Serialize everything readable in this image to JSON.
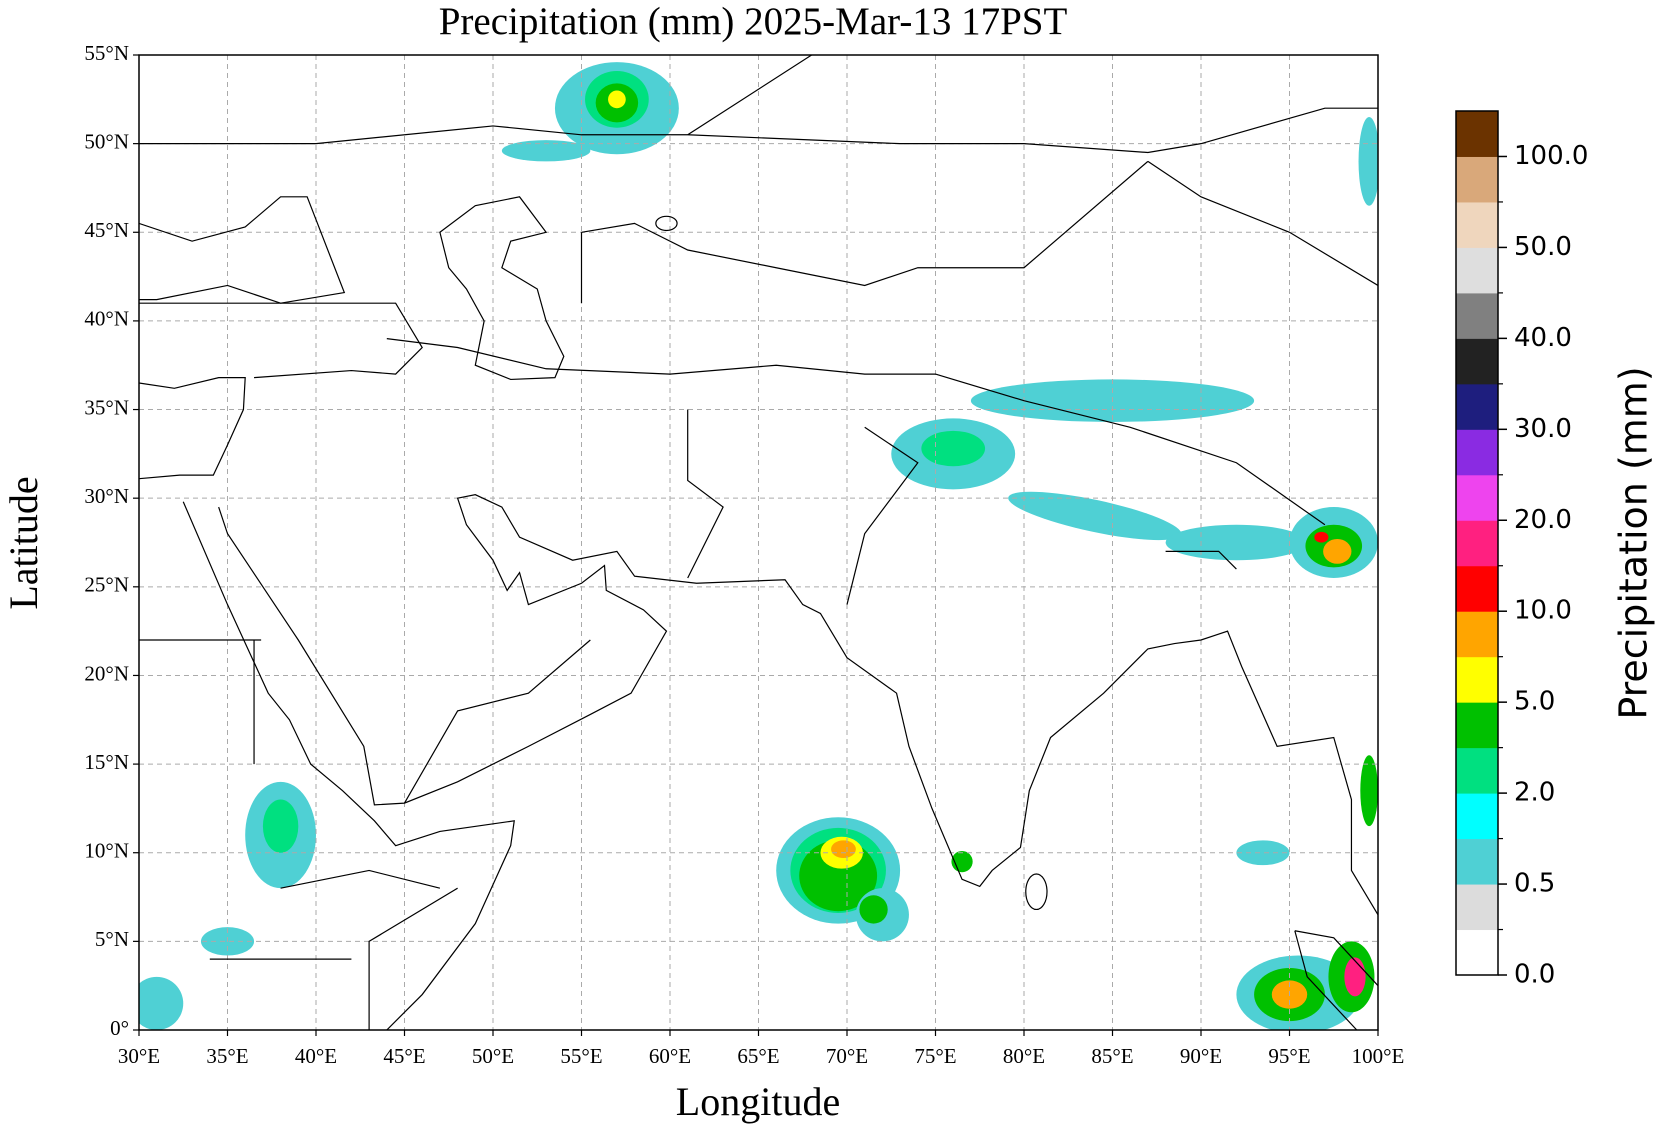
{
  "chart_data": {
    "type": "map",
    "title": "Precipitation (mm)  2025-Mar-13 17PST",
    "x_label": "Longitude",
    "y_label": "Latitude",
    "xlim": [
      30,
      100
    ],
    "ylim": [
      0,
      55
    ],
    "grid": true,
    "xticks": [
      {
        "value": 30,
        "label": "30°E"
      },
      {
        "value": 35,
        "label": "35°E"
      },
      {
        "value": 40,
        "label": "40°E"
      },
      {
        "value": 45,
        "label": "45°E"
      },
      {
        "value": 50,
        "label": "50°E"
      },
      {
        "value": 55,
        "label": "55°E"
      },
      {
        "value": 60,
        "label": "60°E"
      },
      {
        "value": 65,
        "label": "65°E"
      },
      {
        "value": 70,
        "label": "70°E"
      },
      {
        "value": 75,
        "label": "75°E"
      },
      {
        "value": 80,
        "label": "80°E"
      },
      {
        "value": 85,
        "label": "85°E"
      },
      {
        "value": 90,
        "label": "90°E"
      },
      {
        "value": 95,
        "label": "95°E"
      },
      {
        "value": 100,
        "label": "100°E"
      }
    ],
    "yticks": [
      {
        "value": 0,
        "label": "0°"
      },
      {
        "value": 5,
        "label": "5°N"
      },
      {
        "value": 10,
        "label": "10°N"
      },
      {
        "value": 15,
        "label": "15°N"
      },
      {
        "value": 20,
        "label": "20°N"
      },
      {
        "value": 25,
        "label": "25°N"
      },
      {
        "value": 30,
        "label": "30°N"
      },
      {
        "value": 35,
        "label": "35°N"
      },
      {
        "value": 40,
        "label": "40°N"
      },
      {
        "value": 45,
        "label": "45°N"
      },
      {
        "value": 50,
        "label": "50°N"
      },
      {
        "value": 55,
        "label": "55°N"
      }
    ],
    "colorbar": {
      "label": "Precipitation (mm)",
      "colors": [
        "#ffffff",
        "#dcdcdc",
        "#4fd0d4",
        "#00ffff",
        "#00e080",
        "#00c000",
        "#ffff00",
        "#ffa500",
        "#ff0000",
        "#ff2080",
        "#ee44ee",
        "#8a2be2",
        "#1e1e7e",
        "#222222",
        "#808080",
        "#dedede",
        "#efd6bd",
        "#d9a87a",
        "#6b3300"
      ],
      "ticks": [
        {
          "value": 0,
          "label": "0.0"
        },
        {
          "value": 0.5,
          "label": "0.5"
        },
        {
          "value": 2,
          "label": "2.0"
        },
        {
          "value": 5,
          "label": "5.0"
        },
        {
          "value": 10,
          "label": "10.0"
        },
        {
          "value": 20,
          "label": "20.0"
        },
        {
          "value": 30,
          "label": "30.0"
        },
        {
          "value": 40,
          "label": "40.0"
        },
        {
          "value": 50,
          "label": "50.0"
        },
        {
          "value": 100,
          "label": "100.0"
        }
      ]
    }
  }
}
